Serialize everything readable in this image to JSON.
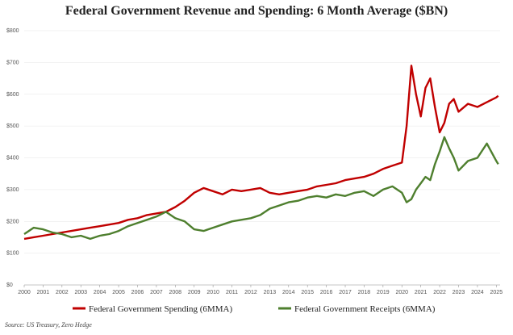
{
  "chart_data": {
    "type": "line",
    "title": "Federal Government Revenue and Spending: 6 Month Average ($BN)",
    "source": "Source: US Treasury, Zero Hedge",
    "x": [
      2000,
      2000.5,
      2001,
      2001.5,
      2002,
      2002.5,
      2003,
      2003.5,
      2004,
      2004.5,
      2005,
      2005.5,
      2006,
      2006.5,
      2007,
      2007.5,
      2008,
      2008.5,
      2009,
      2009.5,
      2010,
      2010.5,
      2011,
      2011.5,
      2012,
      2012.5,
      2013,
      2013.5,
      2014,
      2014.5,
      2015,
      2015.5,
      2016,
      2016.5,
      2017,
      2017.5,
      2018,
      2018.5,
      2019,
      2019.5,
      2020,
      2020.25,
      2020.5,
      2020.75,
      2021,
      2021.25,
      2021.5,
      2021.75,
      2022,
      2022.25,
      2022.5,
      2022.75,
      2023,
      2023.5,
      2024,
      2024.5,
      2025,
      2025.1
    ],
    "series": [
      {
        "name": "Federal Government Spending (6MMA)",
        "color": "#c00000",
        "values": [
          145,
          150,
          155,
          160,
          165,
          170,
          175,
          180,
          185,
          190,
          195,
          205,
          210,
          220,
          225,
          230,
          245,
          265,
          290,
          305,
          295,
          285,
          300,
          295,
          300,
          305,
          290,
          285,
          290,
          295,
          300,
          310,
          315,
          320,
          330,
          335,
          340,
          350,
          365,
          375,
          385,
          500,
          690,
          600,
          530,
          620,
          650,
          560,
          480,
          510,
          570,
          585,
          545,
          570,
          560,
          575,
          590,
          595
        ]
      },
      {
        "name": "Federal Government Receipts (6MMA)",
        "color": "#4e7f2e",
        "values": [
          160,
          180,
          175,
          165,
          160,
          150,
          155,
          145,
          155,
          160,
          170,
          185,
          195,
          205,
          215,
          230,
          210,
          200,
          175,
          170,
          180,
          190,
          200,
          205,
          210,
          220,
          240,
          250,
          260,
          265,
          275,
          280,
          275,
          285,
          280,
          290,
          295,
          280,
          300,
          310,
          290,
          260,
          270,
          300,
          320,
          340,
          330,
          380,
          420,
          465,
          430,
          400,
          360,
          390,
          400,
          445,
          390,
          380
        ]
      }
    ],
    "xlim": [
      2000,
      2025.2
    ],
    "xticks": [
      2000,
      2001,
      2002,
      2003,
      2004,
      2005,
      2006,
      2007,
      2008,
      2009,
      2010,
      2011,
      2012,
      2013,
      2014,
      2015,
      2016,
      2017,
      2018,
      2019,
      2020,
      2021,
      2022,
      2023,
      2024,
      2025
    ],
    "ylim": [
      0,
      800
    ],
    "yticks": [
      {
        "value": 0,
        "label": "$0"
      },
      {
        "value": 100,
        "label": "$100"
      },
      {
        "value": 200,
        "label": "$200"
      },
      {
        "value": 300,
        "label": "$300"
      },
      {
        "value": 400,
        "label": "$400"
      },
      {
        "value": 500,
        "label": "$500"
      },
      {
        "value": 600,
        "label": "$600"
      },
      {
        "value": 700,
        "label": "$700"
      },
      {
        "value": 800,
        "label": "$800"
      }
    ],
    "grid": true
  }
}
